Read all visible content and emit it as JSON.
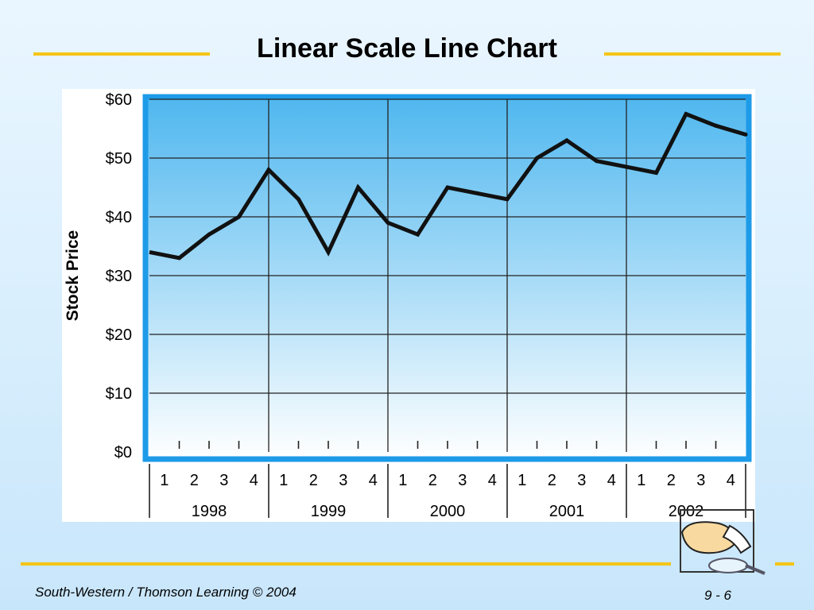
{
  "slide": {
    "title": "Linear Scale Line Chart",
    "footer_left": "South-Western / Thomson Learning © 2004",
    "page_number": "9 - 6",
    "accent_color": "#f5c518",
    "clipart_icon": "magnifier-and-hand-icon"
  },
  "chart_data": {
    "type": "line",
    "title": "",
    "ylabel": "Stock Price",
    "xlabel": "",
    "ylim": [
      0,
      60
    ],
    "y_ticks": [
      0,
      10,
      20,
      30,
      40,
      50,
      60
    ],
    "y_tick_labels": [
      "$0",
      "$10",
      "$20",
      "$30",
      "$40",
      "$50",
      "$60"
    ],
    "quarter_labels": [
      "1",
      "2",
      "3",
      "4"
    ],
    "years": [
      "1998",
      "1999",
      "2000",
      "2001",
      "2002"
    ],
    "grid": true,
    "series": [
      {
        "values": [
          33,
          37,
          40,
          48,
          43,
          34,
          45,
          39,
          37,
          45,
          44,
          43,
          50,
          53,
          49.5,
          48.5,
          47.5,
          57.5,
          55.5,
          54
        ]
      }
    ],
    "start_value": 34,
    "colors": {
      "plot_border": "#1e9be8",
      "plot_top": "#4fb7ef",
      "plot_bottom": "#ffffff",
      "line": "#111111"
    }
  }
}
